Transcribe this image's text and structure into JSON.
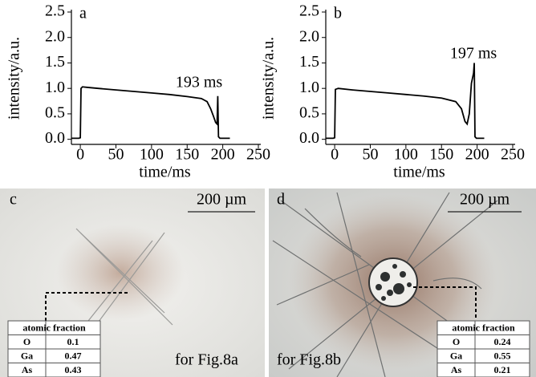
{
  "chart_data": [
    {
      "type": "line",
      "label": "a",
      "ylabel": "intensity/a.u.",
      "xlabel": "time/ms",
      "annotation": "193 ms",
      "xlim": [
        -12.5,
        250
      ],
      "xticks": [
        0,
        50,
        100,
        150,
        200,
        250
      ],
      "ylim": [
        -0.1,
        2.5
      ],
      "yticks": [
        {
          "value": 0,
          "label": "0.0"
        },
        0.5,
        {
          "value": 1,
          "label": "1.0"
        },
        1.5,
        {
          "value": 2,
          "label": "2.0"
        },
        2.5
      ],
      "color": "#000000",
      "x": [
        -12,
        -2,
        0,
        1,
        3,
        10,
        25,
        50,
        75,
        100,
        125,
        150,
        170,
        178,
        183,
        187,
        190,
        192,
        193,
        194,
        196,
        210
      ],
      "values": [
        0.02,
        0.02,
        0.03,
        1.0,
        1.03,
        1.02,
        1.0,
        0.97,
        0.94,
        0.91,
        0.88,
        0.84,
        0.8,
        0.74,
        0.6,
        0.45,
        0.33,
        0.3,
        0.85,
        0.05,
        0.02,
        0.02
      ]
    },
    {
      "type": "line",
      "label": "b",
      "ylabel": "intensity/a.u.",
      "xlabel": "time/ms",
      "annotation": "197 ms",
      "xlim": [
        -12.5,
        250
      ],
      "xticks": [
        0,
        50,
        100,
        150,
        200,
        250
      ],
      "ylim": [
        -0.1,
        2.5
      ],
      "yticks": [
        {
          "value": 0,
          "label": "0.0"
        },
        0.5,
        {
          "value": 1,
          "label": "1.0"
        },
        1.5,
        {
          "value": 2,
          "label": "2.0"
        },
        2.5
      ],
      "color": "#000000",
      "x": [
        -12,
        -2,
        0,
        1,
        5,
        25,
        50,
        75,
        100,
        125,
        150,
        170,
        178,
        183,
        186,
        189,
        192,
        195,
        196,
        197,
        199,
        210
      ],
      "values": [
        0.02,
        0.02,
        0.03,
        0.98,
        1.0,
        0.97,
        0.94,
        0.91,
        0.88,
        0.85,
        0.81,
        0.74,
        0.6,
        0.35,
        0.3,
        0.5,
        1.1,
        1.3,
        1.5,
        0.05,
        0.02,
        0.02
      ]
    }
  ],
  "panels": [
    {
      "label": "c",
      "scale": "200 µm",
      "caption": "for Fig.8a",
      "table": {
        "header": "atomic fraction",
        "rows": [
          [
            "O",
            "0.1"
          ],
          [
            "Ga",
            "0.47"
          ],
          [
            "As",
            "0.43"
          ]
        ]
      }
    },
    {
      "label": "d",
      "scale": "200 µm",
      "caption": "for Fig.8b",
      "table": {
        "header": "atomic fraction",
        "rows": [
          [
            "O",
            "0.24"
          ],
          [
            "Ga",
            "0.55"
          ],
          [
            "As",
            "0.21"
          ]
        ]
      }
    }
  ]
}
